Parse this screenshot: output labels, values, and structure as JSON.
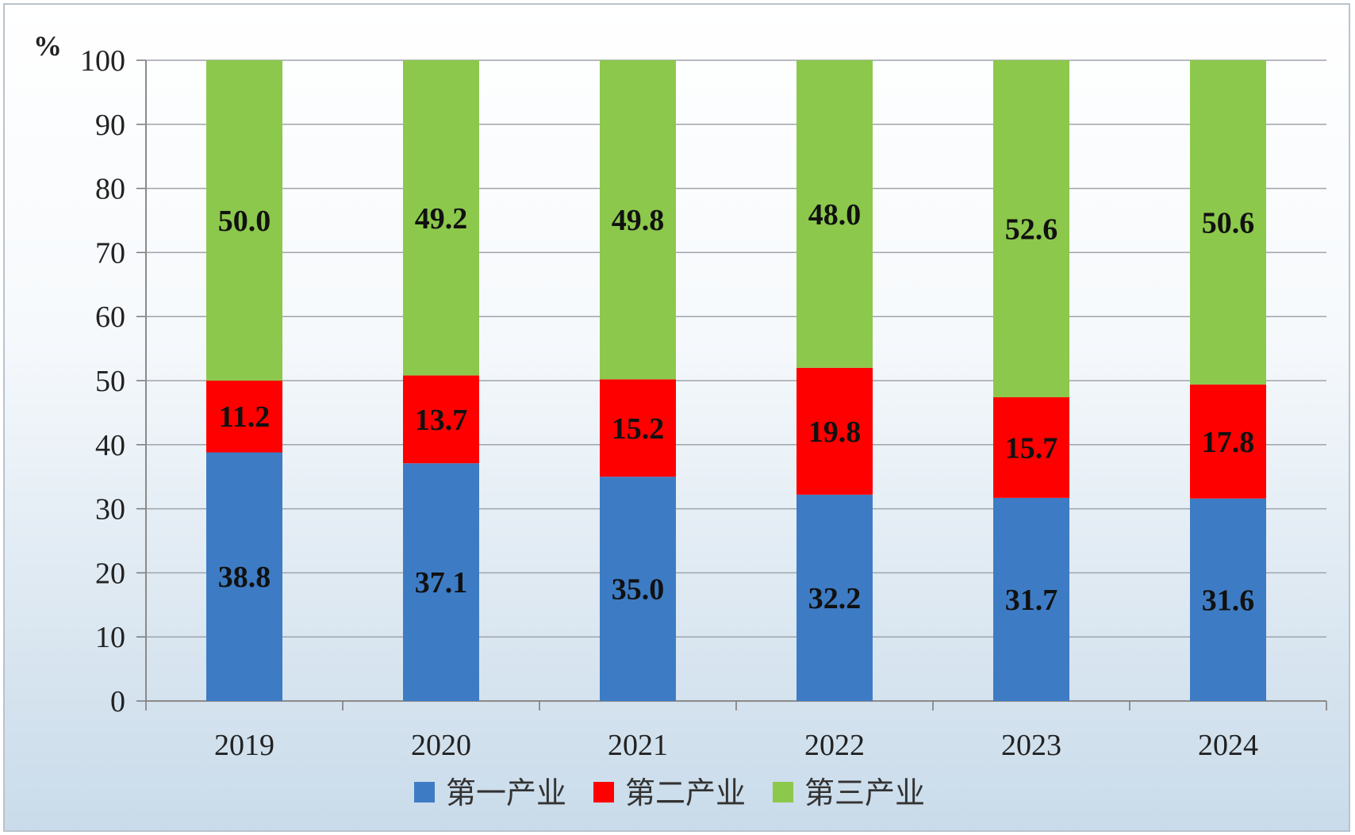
{
  "chart_data": {
    "type": "bar",
    "stacked": true,
    "unit_label": "%",
    "categories": [
      "2019",
      "2020",
      "2021",
      "2022",
      "2023",
      "2024"
    ],
    "series": [
      {
        "name": "第一产业",
        "color": "#3d7cc4",
        "values": [
          38.8,
          37.1,
          35.0,
          32.2,
          31.7,
          31.6
        ]
      },
      {
        "name": "第二产业",
        "color": "#ff0000",
        "values": [
          11.2,
          13.7,
          15.2,
          19.8,
          15.7,
          17.8
        ]
      },
      {
        "name": "第三产业",
        "color": "#8cc84b",
        "values": [
          50.0,
          49.2,
          49.8,
          48.0,
          52.6,
          50.6
        ]
      }
    ],
    "data_labels": [
      [
        "38.8",
        "37.1",
        "35.0",
        "32.2",
        "31.7",
        "31.6"
      ],
      [
        "11.2",
        "13.7",
        "15.2",
        "19.8",
        "15.7",
        "17.8"
      ],
      [
        "50.0",
        "49.2",
        "49.8",
        "48.0",
        "52.6",
        "50.6"
      ]
    ],
    "ylim": [
      0,
      100
    ],
    "yticks": [
      "0",
      "10",
      "20",
      "30",
      "40",
      "50",
      "60",
      "70",
      "80",
      "90",
      "100"
    ],
    "grid": true,
    "legend_position": "bottom"
  }
}
